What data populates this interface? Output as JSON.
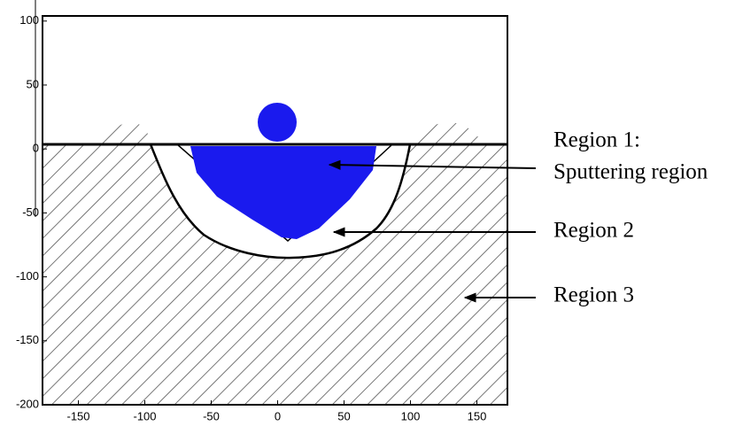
{
  "chart_data": {
    "type": "diagram",
    "xlim": [
      -177,
      173
    ],
    "xticks": [
      -150,
      -100,
      -50,
      0,
      50,
      100,
      150
    ],
    "ylim": [
      -200,
      104
    ],
    "yticks": [
      100,
      50,
      0,
      -50,
      -100,
      -150,
      -200
    ],
    "annotations": [
      "Region 1:",
      "Sputtering region",
      "Region 2",
      "Region 3"
    ],
    "color": "#1a1aee"
  }
}
